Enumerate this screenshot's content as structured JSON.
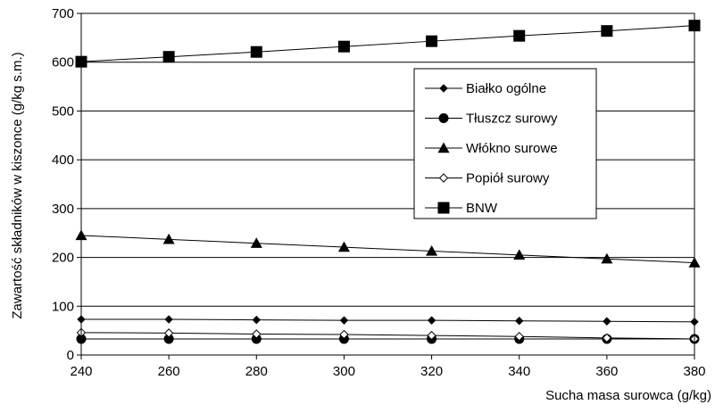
{
  "chart_data": {
    "type": "line",
    "title": "",
    "xlabel": "Sucha masa surowca (g/kg)",
    "ylabel": "Zawartość składników w kiszonce (g/kg s.m.)",
    "x": [
      240,
      260,
      280,
      300,
      320,
      340,
      360,
      380
    ],
    "xlim": [
      240,
      380
    ],
    "ylim": [
      0,
      700
    ],
    "x_ticks": [
      "240",
      "260",
      "280",
      "300",
      "320",
      "340",
      "360",
      "380"
    ],
    "y_ticks": [
      "0",
      "100",
      "200",
      "300",
      "400",
      "500",
      "600",
      "700"
    ],
    "grid": "horizontal",
    "legend_position": "right",
    "series": [
      {
        "name": "Białko ogólne",
        "marker": "diamond",
        "values": [
          73,
          73,
          72,
          71,
          71,
          70,
          69,
          68
        ]
      },
      {
        "name": "Tłuszcz surowy",
        "marker": "circle",
        "values": [
          33,
          33,
          33,
          33,
          33,
          33,
          33,
          33
        ]
      },
      {
        "name": "Włókno surowe",
        "marker": "triangle",
        "values": [
          245,
          237,
          229,
          221,
          213,
          205,
          197,
          189
        ]
      },
      {
        "name": "Popiół surowy",
        "marker": "open-diamond",
        "values": [
          46,
          45,
          43,
          42,
          40,
          38,
          35,
          33
        ]
      },
      {
        "name": "BNW",
        "marker": "square",
        "values": [
          601,
          611,
          621,
          632,
          643,
          654,
          664,
          675
        ]
      }
    ]
  }
}
